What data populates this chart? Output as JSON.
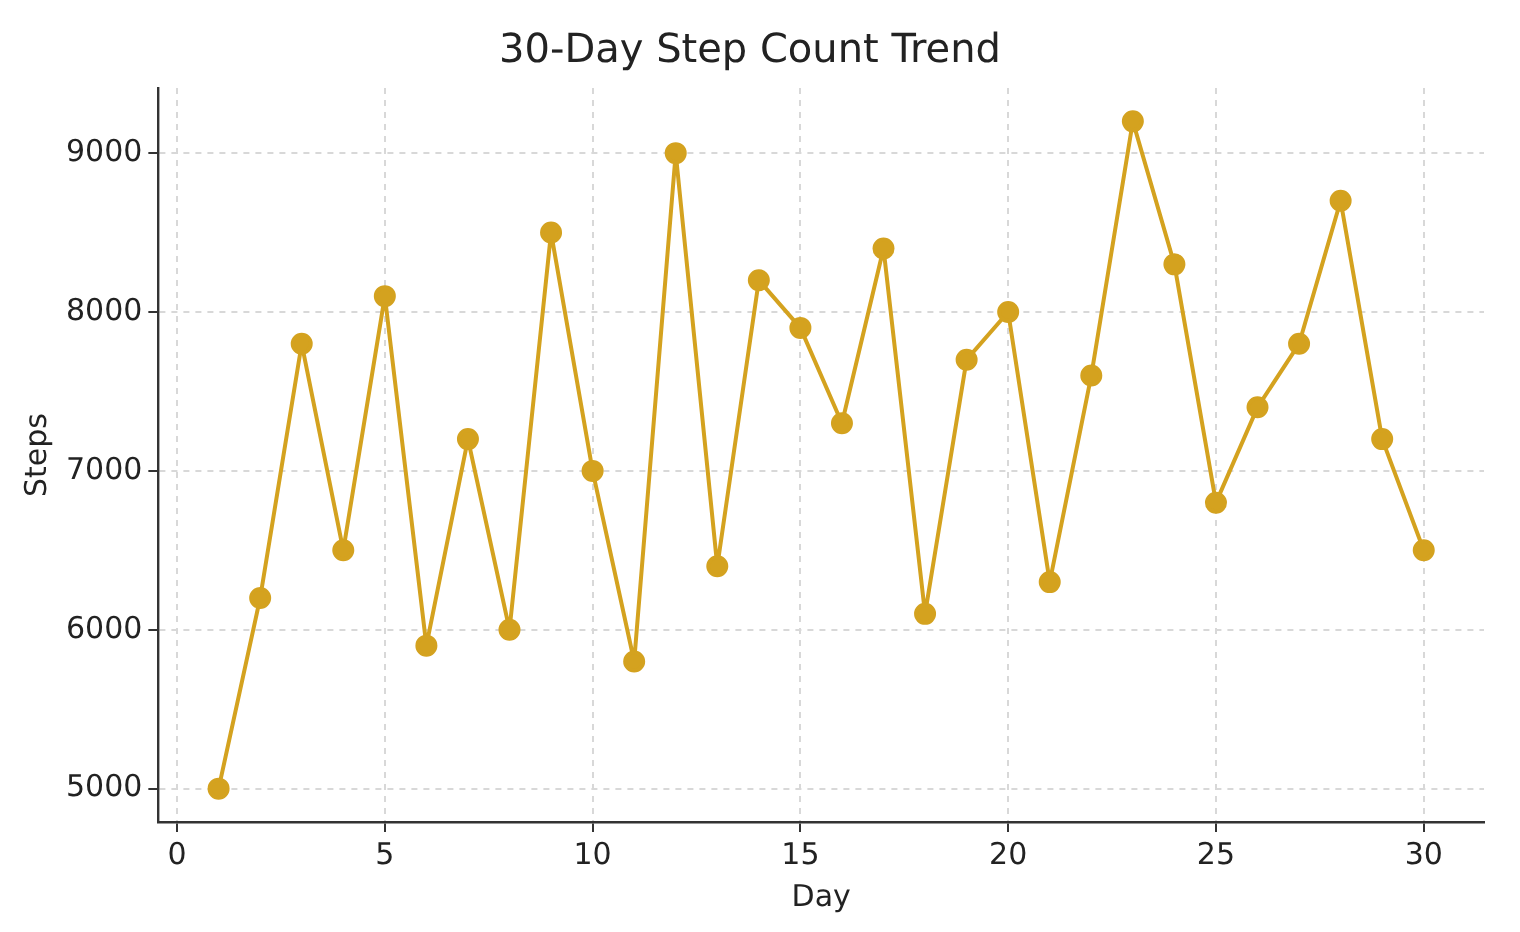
{
  "chart_data": {
    "type": "line",
    "title": "30-Day Step Count Trend",
    "xlabel": "Day",
    "ylabel": "Steps",
    "x": [
      1,
      2,
      3,
      4,
      5,
      6,
      7,
      8,
      9,
      10,
      11,
      12,
      13,
      14,
      15,
      16,
      17,
      18,
      19,
      20,
      21,
      22,
      23,
      24,
      25,
      26,
      27,
      28,
      29,
      30
    ],
    "series": [
      {
        "color": "#d4a21f",
        "values": [
          5000,
          6200,
          7800,
          6500,
          8100,
          5900,
          7200,
          6000,
          8500,
          7000,
          5800,
          9000,
          6400,
          8200,
          7900,
          7300,
          8400,
          6100,
          7700,
          8000,
          6300,
          7600,
          9200,
          8300,
          6800,
          7400,
          7800,
          8700,
          7200,
          6500
        ]
      }
    ],
    "xlim": [
      -0.45,
      31.45
    ],
    "xticks": [
      0,
      5,
      10,
      15,
      20,
      25,
      30
    ],
    "ylim": [
      4790,
      9410
    ],
    "yticks": [
      5000,
      6000,
      7000,
      8000,
      9000
    ],
    "grid": true,
    "marker": "circle",
    "line_style": "solid",
    "legend": false
  }
}
